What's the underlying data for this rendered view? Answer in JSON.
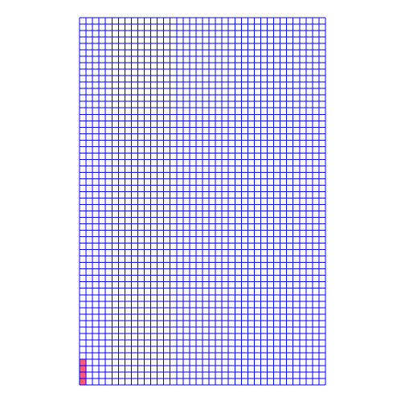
{
  "board": {
    "columns": 38,
    "rows": 57,
    "grid_color": "#0000ff",
    "background_color": "#ffffff",
    "filled_color": "#ff5a6e",
    "filled_cells": [
      {
        "col": 0,
        "row": 53
      },
      {
        "col": 0,
        "row": 54
      },
      {
        "col": 0,
        "row": 55
      },
      {
        "col": 0,
        "row": 56
      }
    ]
  }
}
